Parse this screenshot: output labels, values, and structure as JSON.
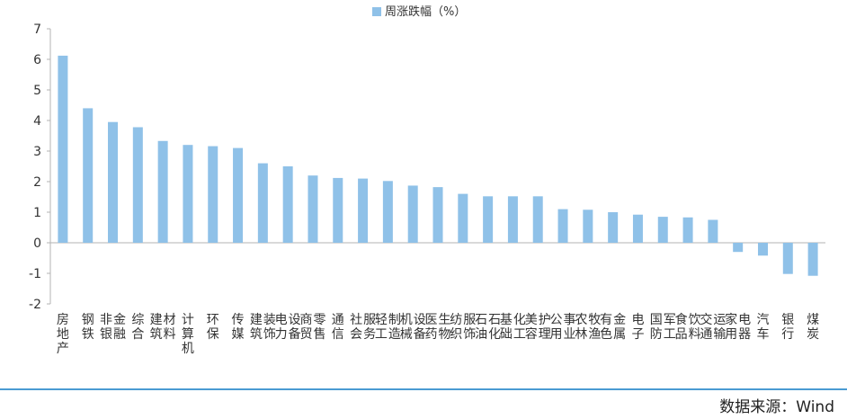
{
  "chart_data": {
    "type": "bar",
    "legend": {
      "label": "周涨跌幅（%）",
      "placement": "top-center"
    },
    "ylim": [
      -2,
      7
    ],
    "yticks": [
      7,
      6,
      5,
      4,
      3,
      2,
      1,
      0,
      -1,
      -2
    ],
    "ytick_labels": [
      "7",
      "6",
      "5",
      "4",
      "3",
      "2",
      "1",
      "0",
      "-1",
      "-2"
    ],
    "grid": false,
    "categories": [
      "房地产",
      "钢铁",
      "非银金融",
      "综合",
      "建筑材料",
      "计算机",
      "环保",
      "传媒",
      "建筑装饰",
      "电力设备",
      "商贸零售",
      "通信",
      "社会服务",
      "轻工制造",
      "机械设备",
      "医药生物",
      "纺织服饰",
      "石油石化",
      "基础化工",
      "美容护理",
      "公用事业",
      "农林牧渔",
      "有色金属",
      "电子",
      "国防军工",
      "食品饮料",
      "交通运输",
      "家用电器",
      "汽车",
      "银行",
      "煤炭"
    ],
    "series": [
      {
        "name": "周涨跌幅（%）",
        "color": "#8fc1e8",
        "values": [
          6.12,
          4.4,
          3.95,
          3.78,
          3.33,
          3.2,
          3.16,
          3.1,
          2.6,
          2.5,
          2.2,
          2.12,
          2.1,
          2.02,
          1.87,
          1.82,
          1.6,
          1.52,
          1.52,
          1.52,
          1.1,
          1.08,
          1.0,
          0.92,
          0.85,
          0.83,
          0.75,
          -0.3,
          -0.42,
          -1.02,
          -1.08
        ]
      }
    ]
  },
  "source": {
    "text": "数据来源：Wind",
    "line_color": "#4a9bd3"
  }
}
